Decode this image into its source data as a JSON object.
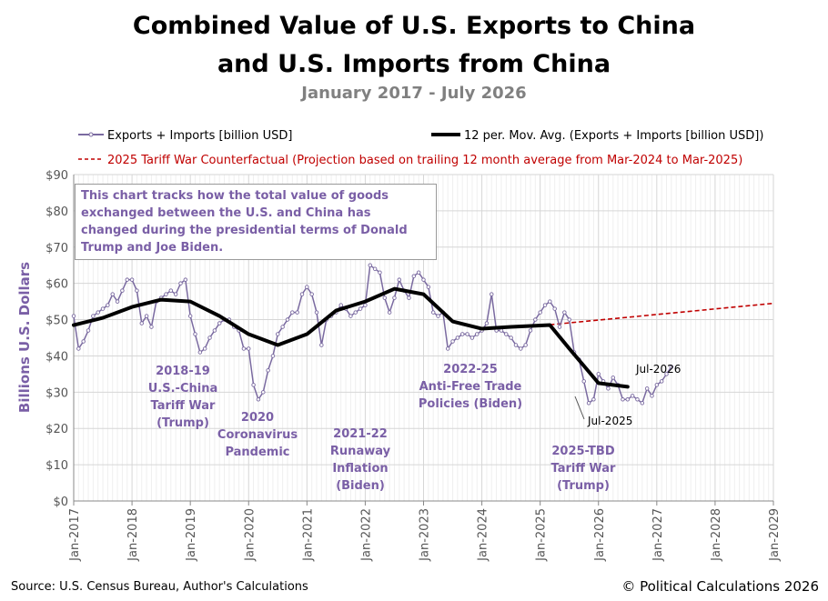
{
  "title_line1": "Combined Value of U.S. Exports to China",
  "title_line2": "and U.S. Imports from China",
  "subtitle": "January 2017 - July 2026",
  "legend": {
    "series1": "Exports + Imports [billion USD]",
    "series2": "12 per. Mov. Avg. (Exports + Imports [billion USD])",
    "series3": "2025 Tariff War Counterfactual  (Projection based on trailing 12 month average from Mar-2024 to Mar-2025)"
  },
  "note": "This chart tracks how the total value of goods exchanged between the U.S. and China has changed during the presidential terms of Donald Trump and Joe Biden.",
  "source": "Source: U.S. Census Bureau, Author's Calculations",
  "copyright": "© Political Calculations 2026",
  "annotations": {
    "a1": [
      "2018-19",
      "U.S.-China",
      "Tariff War",
      "(Trump)"
    ],
    "a2": [
      "2020",
      "Coronavirus",
      "Pandemic"
    ],
    "a3": [
      "2021-22",
      "Runaway",
      "Inflation",
      "(Biden)"
    ],
    "a4": [
      "2022-25",
      "Anti-Free Trade",
      "Policies (Biden)"
    ],
    "a5": [
      "2025-TBD",
      "Tariff War",
      "(Trump)"
    ],
    "jul2025": "Jul-2025",
    "jul2026": "Jul-2026"
  },
  "colors": {
    "series1": "#7a6aa0",
    "series2": "#000000",
    "series3": "#c00000",
    "annotation": "#7a5fa6"
  },
  "chart_data": {
    "type": "line",
    "title": "Combined Value of U.S. Exports to China and U.S. Imports from China",
    "subtitle": "January 2017 - July 2026",
    "ylabel": "Billions U.S. Dollars",
    "ylim": [
      0,
      90
    ],
    "yticks": [
      "$0",
      "$10",
      "$20",
      "$30",
      "$40",
      "$50",
      "$60",
      "$70",
      "$80",
      "$90"
    ],
    "xlim": [
      "Jan-2017",
      "Jan-2029"
    ],
    "xticks": [
      "Jan-2017",
      "Jan-2018",
      "Jan-2019",
      "Jan-2020",
      "Jan-2021",
      "Jan-2022",
      "Jan-2023",
      "Jan-2024",
      "Jan-2025",
      "Jan-2026",
      "Jan-2027",
      "Jan-2028",
      "Jan-2029"
    ],
    "grid": true,
    "legend_position": "top",
    "series": [
      {
        "name": "Exports + Imports [billion USD]",
        "start": "Jan-2017",
        "frequency": "monthly",
        "values": [
          51,
          42,
          44,
          47,
          51,
          52,
          53,
          54,
          57,
          55,
          58,
          61,
          61,
          58,
          49,
          51,
          48,
          55,
          56,
          57,
          58,
          57,
          60,
          61,
          51,
          46,
          41,
          42,
          45,
          47,
          49,
          50,
          50,
          48,
          47,
          42,
          42,
          32,
          28,
          30,
          36,
          40,
          46,
          48,
          50,
          52,
          52,
          57,
          59,
          57,
          52,
          43,
          50,
          51,
          52,
          54,
          53,
          51,
          52,
          53,
          54,
          65,
          64,
          63,
          56,
          52,
          56,
          61,
          58,
          56,
          62,
          63,
          61,
          59,
          52,
          51,
          52,
          42,
          44,
          45,
          46,
          46,
          45,
          46,
          47,
          49,
          57,
          47,
          47,
          46,
          45,
          43,
          42,
          43,
          47,
          50,
          52,
          54,
          55,
          53,
          48,
          52,
          50,
          41,
          39,
          33,
          27,
          28,
          35,
          33,
          31,
          34,
          32,
          28,
          28,
          29,
          28,
          27,
          31,
          29,
          32,
          33,
          35,
          37
        ]
      },
      {
        "name": "12 per. Mov. Avg. (Exports + Imports [billion USD])",
        "points": [
          [
            "Jan-2017",
            48.5
          ],
          [
            "Jul-2017",
            50.5
          ],
          [
            "Jan-2018",
            53.5
          ],
          [
            "Jul-2018",
            55.5
          ],
          [
            "Jan-2019",
            55
          ],
          [
            "Jul-2019",
            51
          ],
          [
            "Jan-2020",
            46
          ],
          [
            "Jul-2020",
            43
          ],
          [
            "Jan-2021",
            46
          ],
          [
            "Jul-2021",
            52.5
          ],
          [
            "Jan-2022",
            55
          ],
          [
            "Jul-2022",
            58.5
          ],
          [
            "Jan-2023",
            57
          ],
          [
            "Jul-2023",
            49.5
          ],
          [
            "Jan-2024",
            47.5
          ],
          [
            "Jul-2024",
            48
          ],
          [
            "Mar-2025",
            48.5
          ],
          [
            "Jul-2025",
            42
          ],
          [
            "Jan-2026",
            32.5
          ],
          [
            "Jul-2026",
            31.5
          ]
        ]
      },
      {
        "name": "2025 Tariff War Counterfactual  (Projection based on trailing 12 month average from Mar-2024 to Mar-2025)",
        "points": [
          [
            "Mar-2025",
            48.6
          ],
          [
            "Jan-2029",
            54.5
          ]
        ]
      }
    ]
  }
}
